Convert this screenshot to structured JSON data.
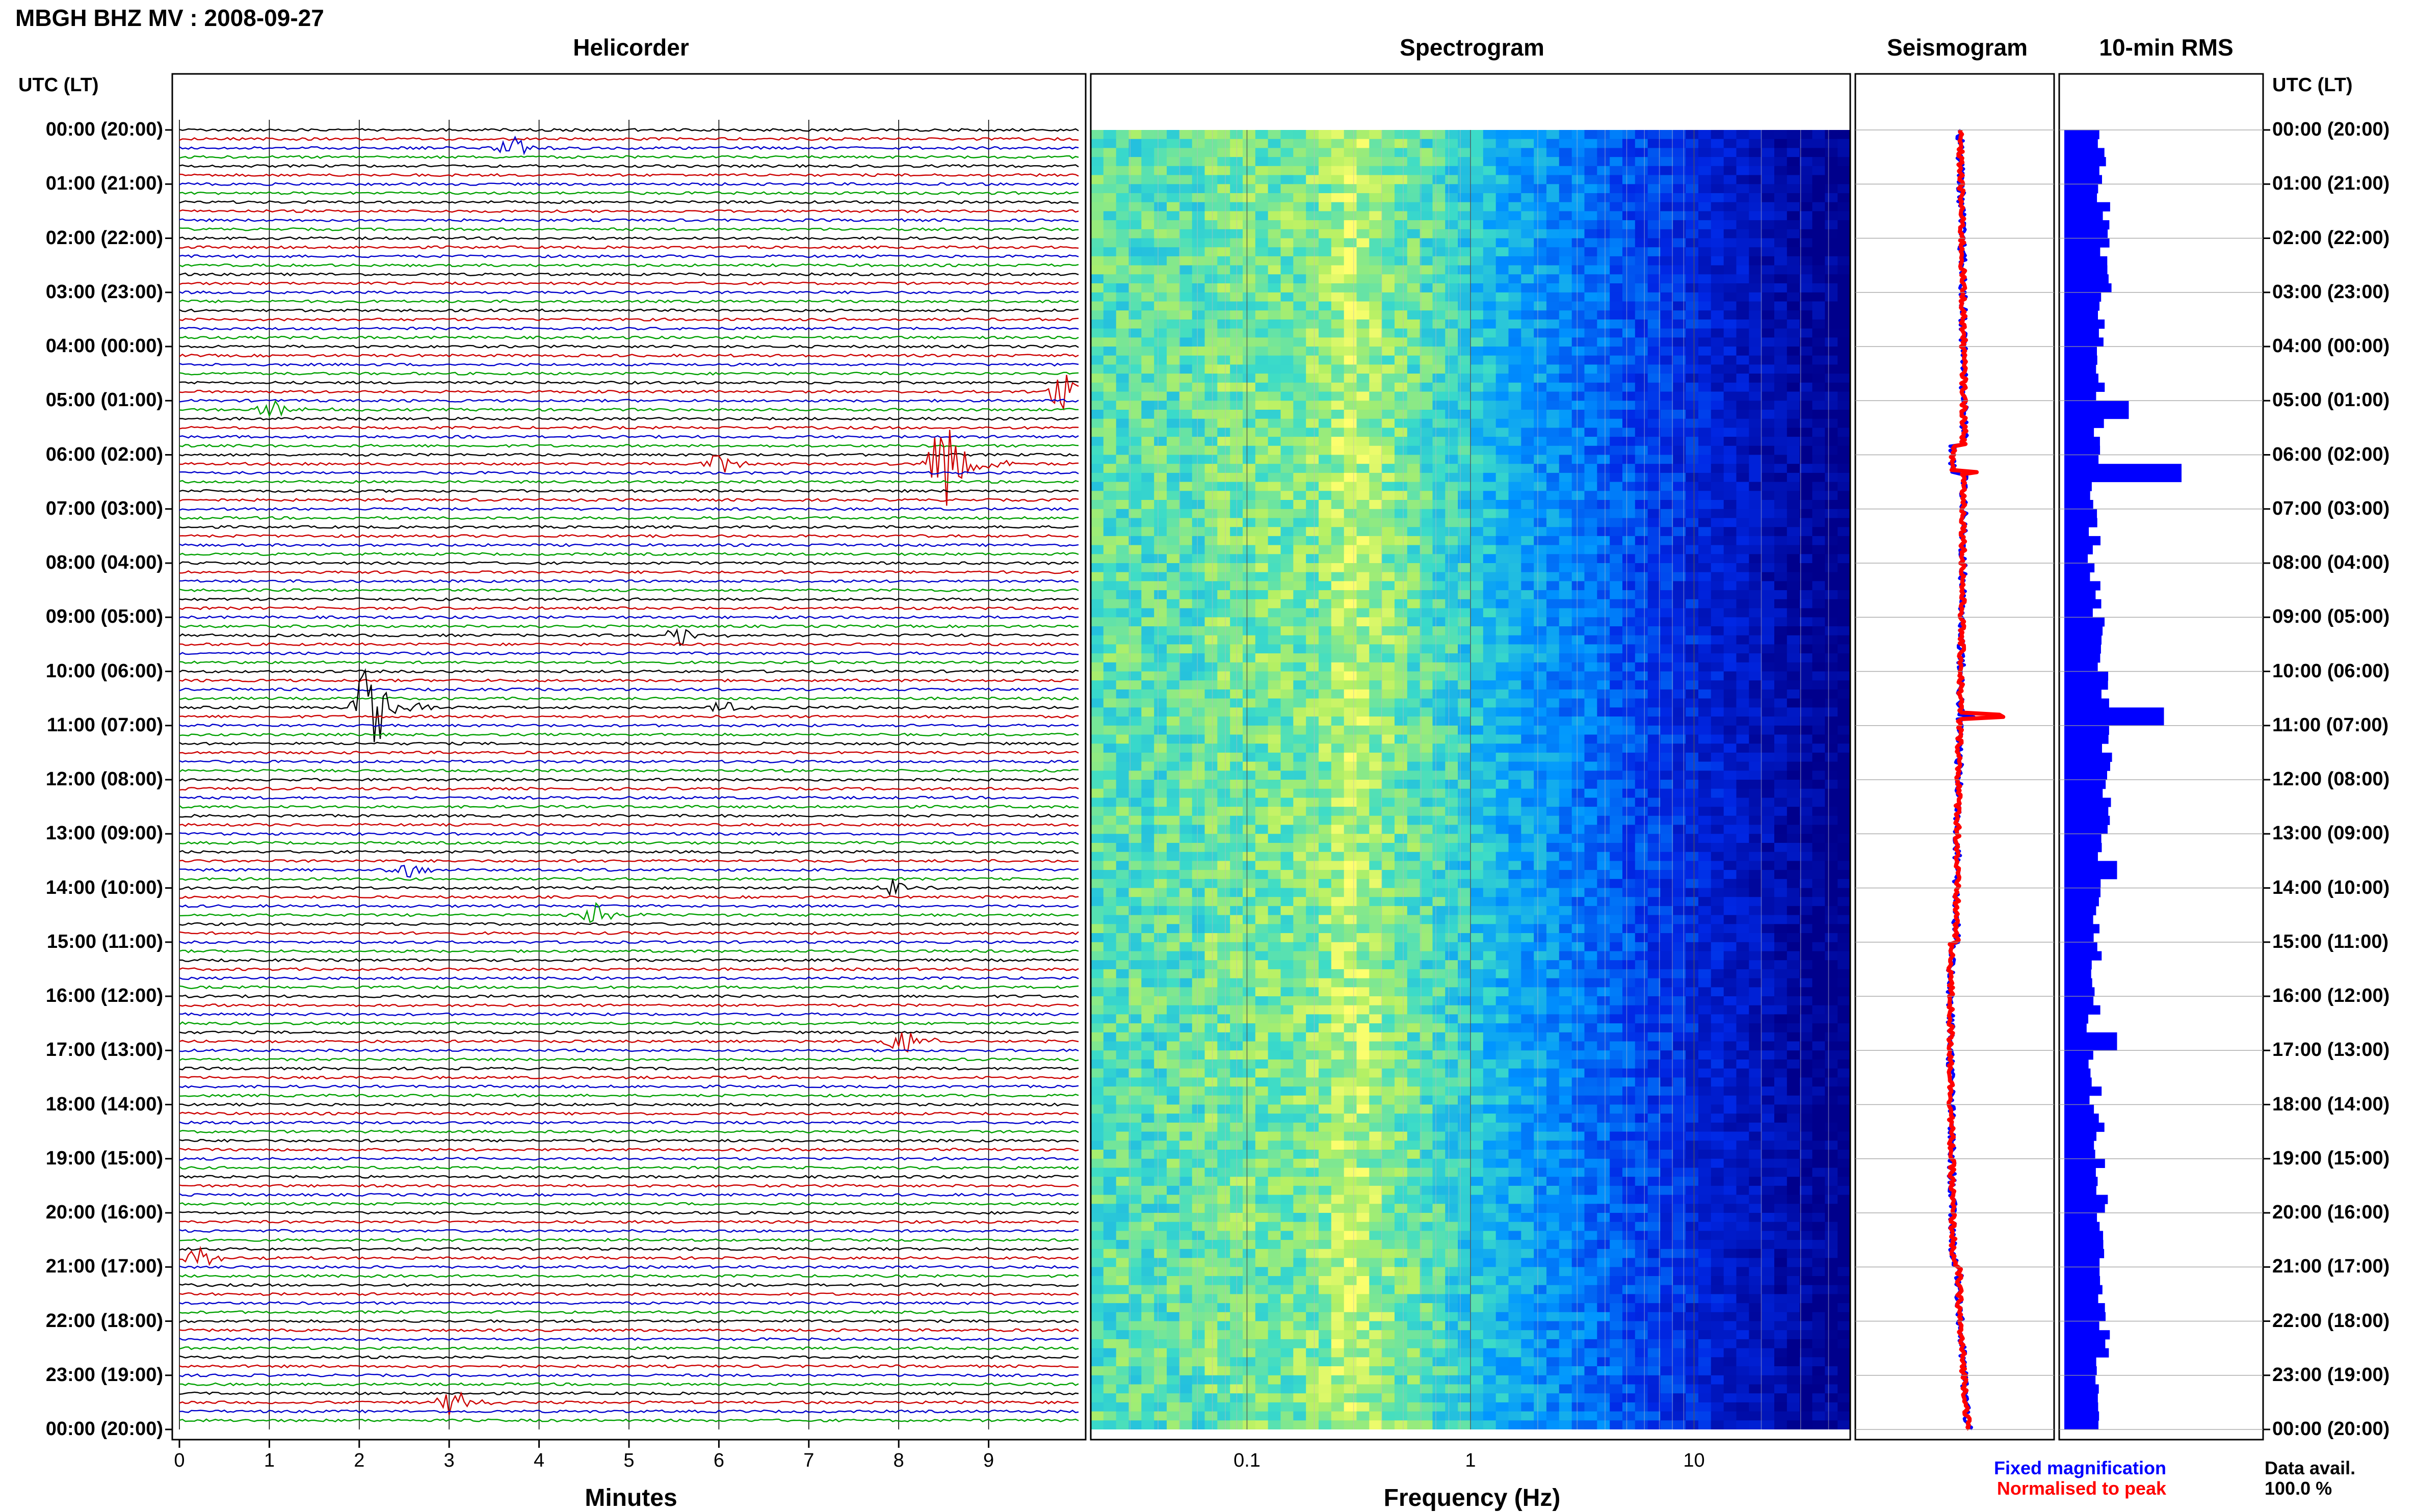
{
  "header": {
    "title": "MBGH BHZ MV : 2008-09-27"
  },
  "panels": {
    "helicorder": "Helicorder",
    "spectrogram": "Spectrogram",
    "seismogram": "Seismogram",
    "rms": "10-min RMS"
  },
  "axes": {
    "time_label_left": "UTC (LT)",
    "time_label_right": "UTC (LT)",
    "hour_labels": [
      "00:00 (20:00)",
      "01:00 (21:00)",
      "02:00 (22:00)",
      "03:00 (23:00)",
      "04:00 (00:00)",
      "05:00 (01:00)",
      "06:00 (02:00)",
      "07:00 (03:00)",
      "08:00 (04:00)",
      "09:00 (05:00)",
      "10:00 (06:00)",
      "11:00 (07:00)",
      "12:00 (08:00)",
      "13:00 (09:00)",
      "14:00 (10:00)",
      "15:00 (11:00)",
      "16:00 (12:00)",
      "17:00 (13:00)",
      "18:00 (14:00)",
      "19:00 (15:00)",
      "20:00 (16:00)",
      "21:00 (17:00)",
      "22:00 (18:00)",
      "23:00 (19:00)",
      "00:00 (20:00)"
    ],
    "minutes_ticks": [
      "0",
      "1",
      "2",
      "3",
      "4",
      "5",
      "6",
      "7",
      "8",
      "9"
    ],
    "minutes_label": "Minutes",
    "freq_ticks": [
      "0.1",
      "1",
      "10"
    ],
    "freq_label": "Frequency (Hz)"
  },
  "legend": {
    "fixed": "Fixed magnification",
    "normalised": "Normalised to peak",
    "fixed_color": "#0000ff",
    "normalised_color": "#ff0000"
  },
  "availability": {
    "label": "Data avail.",
    "value": "100.0 %"
  },
  "colors": {
    "trace_cycle": [
      "#000000",
      "#cc0000",
      "#0000cc",
      "#00a000"
    ],
    "spectrogram_low": "#00008b",
    "spectrogram_high": "#ffff66",
    "rms_bar": "#0000ff"
  },
  "chart_data": {
    "type": "heatmap",
    "station": "MBGH BHZ MV",
    "date": "2008-09-27",
    "helicorder": {
      "rows_per_hour": 6,
      "row_minutes": 10,
      "xlim_minutes": [
        0,
        10
      ],
      "events": [
        {
          "hour": 0.33,
          "minute": 3.7,
          "amp": 0.6
        },
        {
          "hour": 4.83,
          "minute": 9.8,
          "amp": 1.0
        },
        {
          "hour": 5.17,
          "minute": 1.0,
          "amp": 0.5
        },
        {
          "hour": 6.17,
          "minute": 8.5,
          "amp": 3.0
        },
        {
          "hour": 6.17,
          "minute": 6.0,
          "amp": 0.6
        },
        {
          "hour": 9.33,
          "minute": 5.5,
          "amp": 0.7
        },
        {
          "hour": 10.67,
          "minute": 2.1,
          "amp": 3.0
        },
        {
          "hour": 10.67,
          "minute": 6.0,
          "amp": 0.4
        },
        {
          "hour": 13.67,
          "minute": 2.5,
          "amp": 0.5
        },
        {
          "hour": 14.0,
          "minute": 7.9,
          "amp": 0.5
        },
        {
          "hour": 14.5,
          "minute": 4.6,
          "amp": 0.6
        },
        {
          "hour": 16.83,
          "minute": 8.0,
          "amp": 1.0
        },
        {
          "hour": 20.83,
          "minute": 0.2,
          "amp": 0.6
        },
        {
          "hour": 23.5,
          "minute": 3.0,
          "amp": 0.8
        }
      ]
    },
    "spectrogram": {
      "xlim_hz": [
        0.02,
        50
      ],
      "xscale": "log"
    },
    "rms_10min": {
      "spikes": [
        {
          "hour": 6.33,
          "value": 1.0
        },
        {
          "hour": 10.83,
          "value": 0.85
        },
        {
          "hour": 5.17,
          "value": 0.55
        },
        {
          "hour": 16.83,
          "value": 0.45
        },
        {
          "hour": 13.67,
          "value": 0.45
        }
      ],
      "baseline": 0.3
    }
  }
}
